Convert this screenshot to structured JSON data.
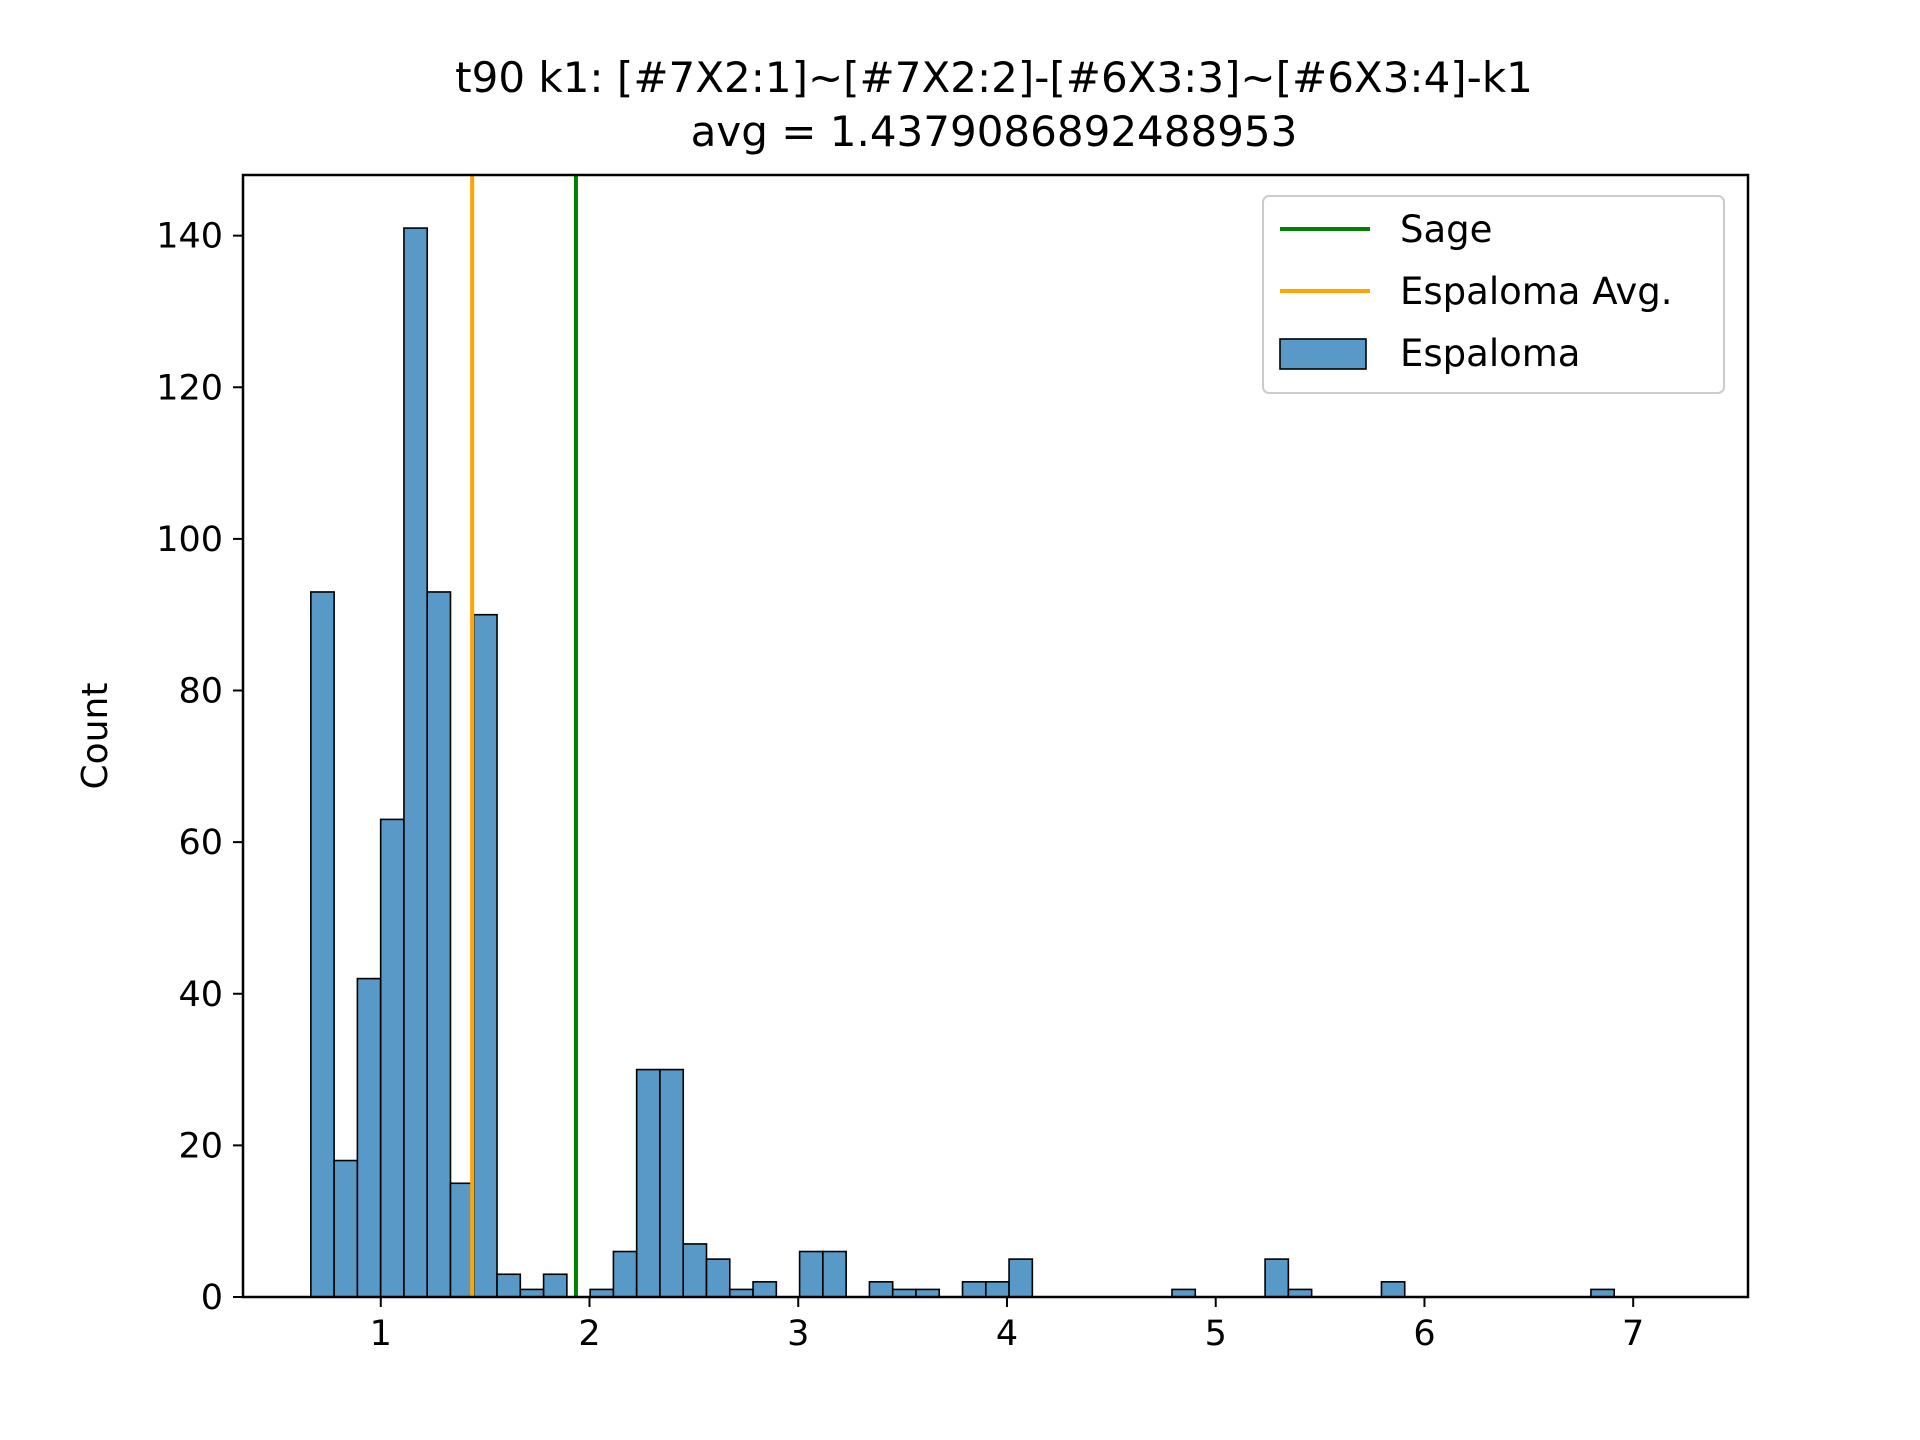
{
  "chart_data": {
    "type": "histogram",
    "title": "t90 k1: [#7X2:1]~[#7X2:2]-[#6X3:3]~[#6X3:4]-k1",
    "subtitle": "avg = 1.4379086892488953",
    "xlabel": "",
    "ylabel": "Count",
    "xlim": [
      0.34,
      7.55
    ],
    "ylim": [
      0,
      148
    ],
    "xticks": [
      1,
      2,
      3,
      4,
      5,
      6,
      7
    ],
    "yticks": [
      0,
      20,
      40,
      60,
      80,
      100,
      120,
      140
    ],
    "grid": false,
    "legend_position": "top-right",
    "bin_start": 0.665,
    "bin_width": 0.1115,
    "counts": [
      93,
      18,
      42,
      63,
      141,
      93,
      15,
      90,
      3,
      1,
      3,
      0,
      1,
      6,
      30,
      30,
      7,
      5,
      1,
      2,
      0,
      6,
      6,
      0,
      2,
      1,
      1,
      0,
      2,
      2,
      5,
      0,
      0,
      0,
      0,
      0,
      0,
      1,
      0,
      0,
      0,
      5,
      1,
      0,
      0,
      0,
      2,
      0,
      0,
      0,
      0,
      0,
      0,
      0,
      0,
      1
    ],
    "vlines": [
      {
        "name": "Sage",
        "x": 1.935,
        "color": "#008000"
      },
      {
        "name": "Espaloma Avg.",
        "x": 1.4379086892488953,
        "color": "#ffa500"
      }
    ],
    "series": [
      {
        "name": "Espaloma",
        "color": "#5899c7"
      }
    ],
    "legend": [
      "Sage",
      "Espaloma Avg.",
      "Espaloma"
    ]
  }
}
